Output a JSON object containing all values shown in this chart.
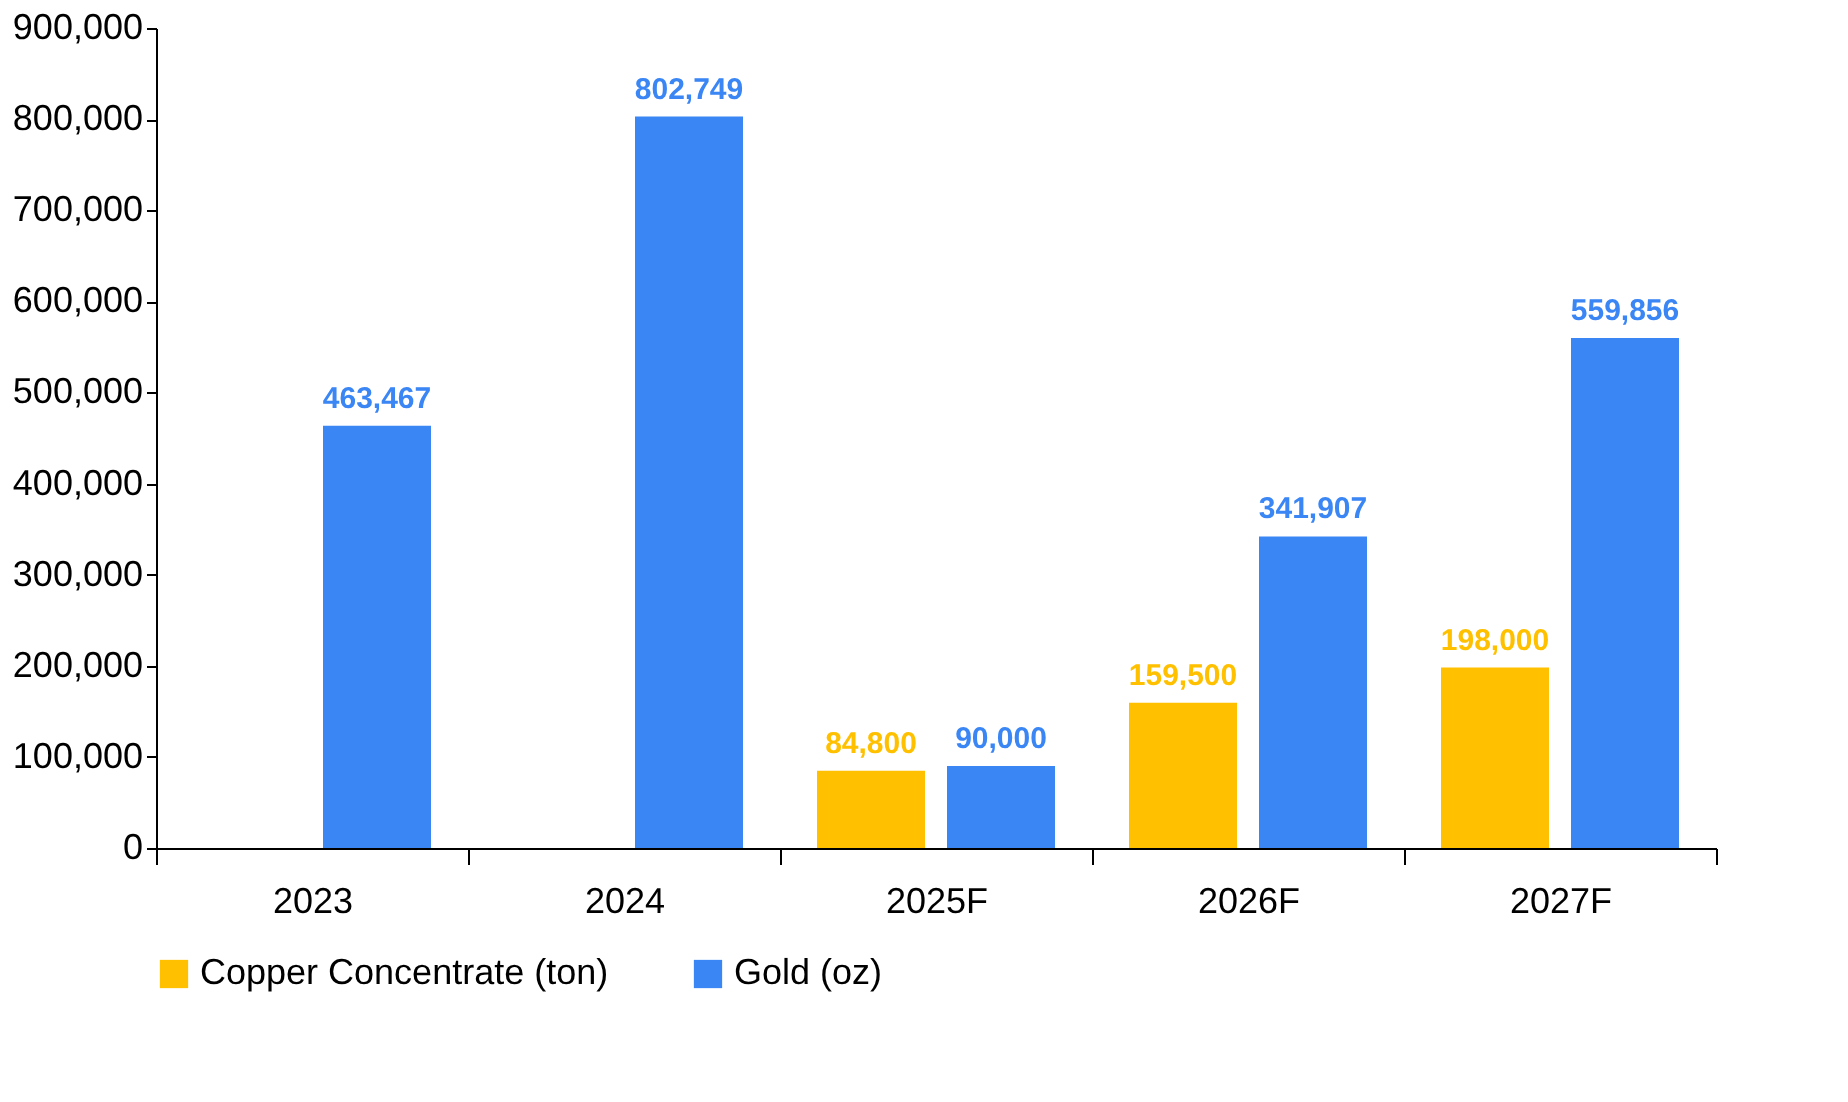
{
  "chart_data": {
    "type": "bar",
    "categories": [
      "2023",
      "2024",
      "2025F",
      "2026F",
      "2027F"
    ],
    "series": [
      {
        "name": "Copper Concentrate (ton)",
        "color": "#ffc000",
        "values": [
          null,
          null,
          84800,
          159500,
          198000
        ],
        "value_labels": [
          null,
          null,
          "84,800",
          "159,500",
          "198,000"
        ]
      },
      {
        "name": "Gold (oz)",
        "color": "#3a86f5",
        "values": [
          463467,
          802749,
          90000,
          341907,
          559856
        ],
        "value_labels": [
          "463,467",
          "802,749",
          "90,000",
          "341,907",
          "559,856"
        ]
      }
    ],
    "ylim": [
      0,
      900000
    ],
    "yticks": [
      0,
      {
        "value": 100000,
        "label": "100,000"
      },
      {
        "value": 200000,
        "label": "200,000"
      },
      {
        "value": 300000,
        "label": "300,000"
      },
      {
        "value": 400000,
        "label": "400,000"
      },
      {
        "value": 500000,
        "label": "500,000"
      },
      {
        "value": 600000,
        "label": "600,000"
      },
      {
        "value": 700000,
        "label": "700,000"
      },
      {
        "value": 800000,
        "label": "800,000"
      },
      {
        "value": 900000,
        "label": "900,000"
      }
    ],
    "grid": false,
    "legend": "bottom"
  }
}
